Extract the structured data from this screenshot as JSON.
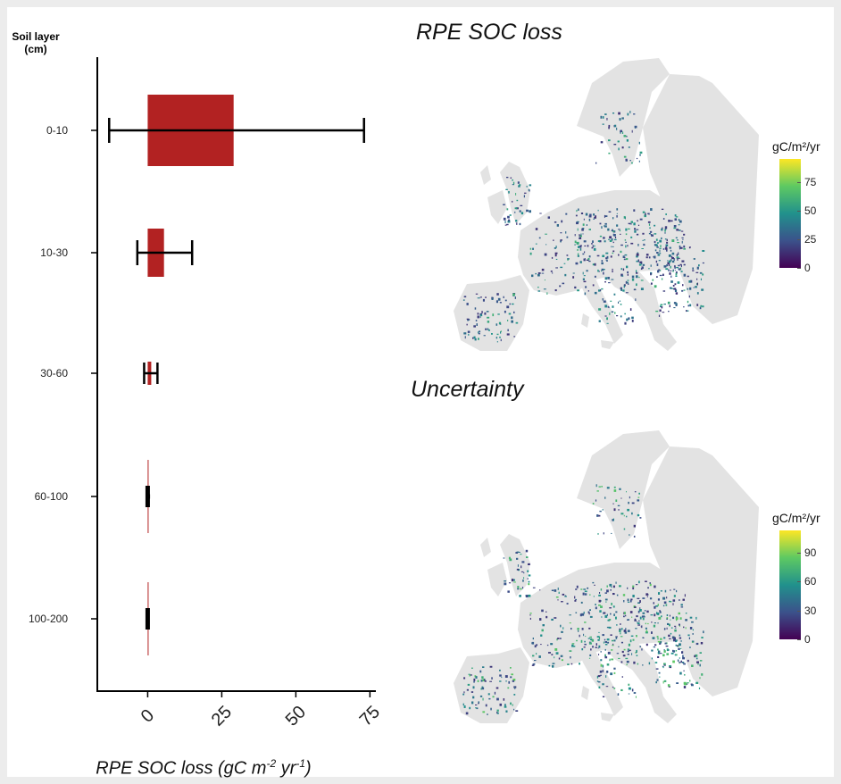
{
  "chart_data": [
    {
      "type": "bar",
      "orientation": "horizontal",
      "yaxis_title_line1": "Soil layer",
      "yaxis_title_line2": "(cm)",
      "xlabel": "RPE SOC loss (gC m⁻² yr⁻¹)",
      "categories": [
        "0-10",
        "10-30",
        "30-60",
        "60-100",
        "100-200"
      ],
      "values": [
        29,
        5.5,
        1.2,
        0.2,
        0.1
      ],
      "error_low": [
        -13,
        -3.5,
        -1.2,
        -0.6,
        -0.5
      ],
      "error_high": [
        73,
        15,
        3.3,
        0.8,
        0.6
      ],
      "xlim": [
        -17,
        77
      ],
      "xticks": [
        "0",
        "25",
        "50",
        "75"
      ],
      "bar_color": "#b22222",
      "grid": false
    },
    {
      "type": "heatmap",
      "title": "RPE SOC loss",
      "legend_title": "gC/m²/yr",
      "legend_ticks": [
        "75",
        "50",
        "25",
        "0"
      ],
      "legend_max": 95,
      "colormap": "viridis"
    },
    {
      "type": "heatmap",
      "title": "Uncertainty",
      "legend_title": "gC/m²/yr",
      "legend_ticks": [
        "90",
        "60",
        "30",
        "0"
      ],
      "legend_max": 113,
      "colormap": "viridis"
    }
  ]
}
